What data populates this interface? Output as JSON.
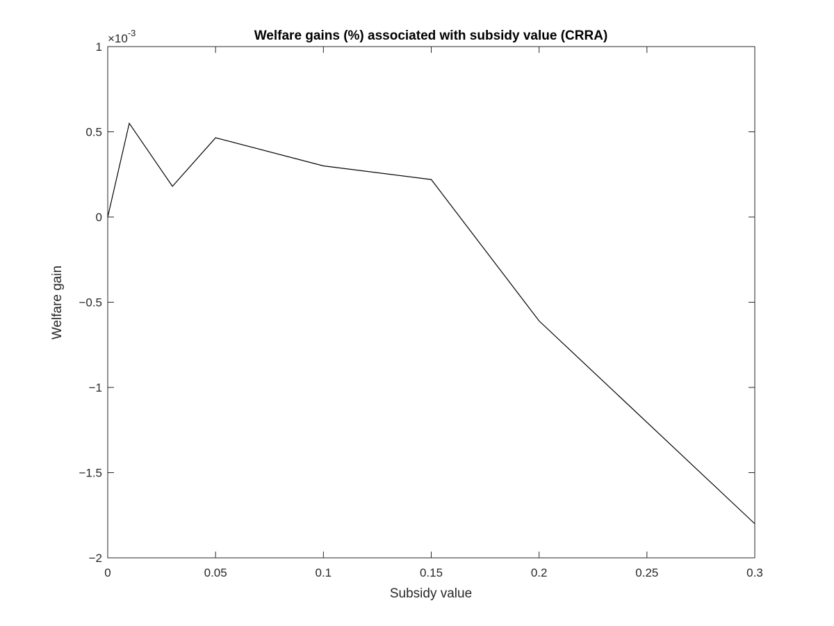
{
  "chart_data": {
    "type": "line",
    "title": "Welfare gains (%) associated with subsidy value (CRRA)",
    "xlabel": "Subsidy value",
    "ylabel": "Welfare gain",
    "y_exponent_base": "×10",
    "y_exponent_power": "-3",
    "xlim": [
      0,
      0.3
    ],
    "ylim": [
      -2,
      1
    ],
    "x_ticks": [
      0,
      0.05,
      0.1,
      0.15,
      0.2,
      0.25,
      0.3
    ],
    "x_tick_labels": [
      "0",
      "0.05",
      "0.1",
      "0.15",
      "0.2",
      "0.25",
      "0.3"
    ],
    "y_ticks": [
      -2,
      -1.5,
      -1,
      -0.5,
      0,
      0.5,
      1
    ],
    "y_tick_labels": [
      "−2",
      "−1.5",
      "−1",
      "−0.5",
      "0",
      "0.5",
      "1"
    ],
    "grid": false,
    "series": [
      {
        "color": "#000000",
        "x": [
          0,
          0.01,
          0.03,
          0.05,
          0.1,
          0.15,
          0.2,
          0.3
        ],
        "y": [
          0,
          0.55,
          0.18,
          0.465,
          0.3,
          0.22,
          -0.61,
          -1.8
        ]
      }
    ]
  }
}
